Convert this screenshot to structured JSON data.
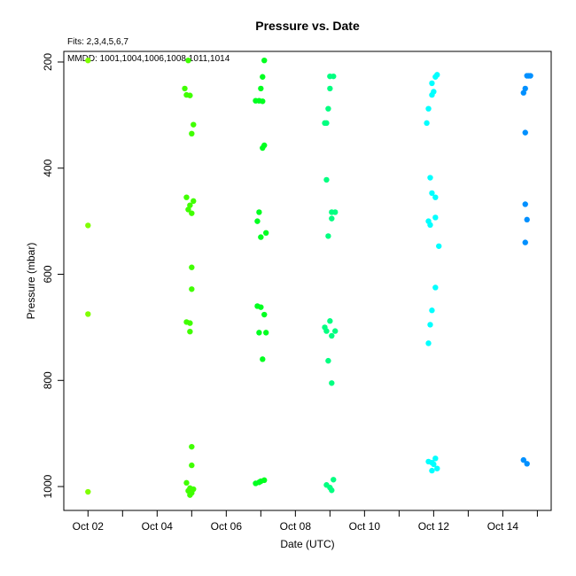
{
  "chart_data": {
    "type": "scatter",
    "title": "Pressure  vs. Date",
    "xlabel": "Date (UTC)",
    "ylabel": "Pressure (mbar)",
    "fits_note": "Fits: 2,3,4,5,6,7",
    "mmdd_note": "MMDD: 1001,1004,1006,1008,1011,1014",
    "xlim": [
      1.3,
      15.4
    ],
    "ylim": [
      1045,
      180
    ],
    "y_reversed": true,
    "grid": false,
    "x_ticks": [
      {
        "value": 2,
        "label": "Oct 02"
      },
      {
        "value": 3,
        "label": ""
      },
      {
        "value": 4,
        "label": "Oct 04"
      },
      {
        "value": 5,
        "label": ""
      },
      {
        "value": 6,
        "label": "Oct 06"
      },
      {
        "value": 7,
        "label": ""
      },
      {
        "value": 8,
        "label": "Oct 08"
      },
      {
        "value": 9,
        "label": ""
      },
      {
        "value": 10,
        "label": "Oct 10"
      },
      {
        "value": 11,
        "label": ""
      },
      {
        "value": 12,
        "label": "Oct 12"
      },
      {
        "value": 13,
        "label": ""
      },
      {
        "value": 14,
        "label": "Oct 14"
      },
      {
        "value": 15,
        "label": ""
      }
    ],
    "y_ticks": [
      {
        "value": 200,
        "label": "200"
      },
      {
        "value": 400,
        "label": "400"
      },
      {
        "value": 600,
        "label": "600"
      },
      {
        "value": 800,
        "label": "800"
      },
      {
        "value": 1000,
        "label": "1000"
      }
    ],
    "series": [
      {
        "color": "#80ff00",
        "points": [
          [
            2.0,
            197
          ],
          [
            2.0,
            508
          ],
          [
            2.0,
            675
          ],
          [
            2.0,
            1010
          ]
        ]
      },
      {
        "color": "#40ff00",
        "points": [
          [
            4.9,
            197
          ],
          [
            4.8,
            250
          ],
          [
            4.85,
            262
          ],
          [
            4.95,
            263
          ],
          [
            5.05,
            318
          ],
          [
            5.0,
            335
          ],
          [
            4.85,
            455
          ],
          [
            5.05,
            462
          ],
          [
            4.95,
            470
          ],
          [
            4.9,
            478
          ],
          [
            5.0,
            485
          ],
          [
            5.0,
            587
          ],
          [
            5.0,
            628
          ],
          [
            4.85,
            690
          ],
          [
            4.95,
            692
          ],
          [
            4.95,
            708
          ],
          [
            5.0,
            925
          ],
          [
            5.0,
            960
          ],
          [
            4.85,
            993
          ],
          [
            4.95,
            1003
          ],
          [
            5.05,
            1005
          ],
          [
            4.9,
            1008
          ],
          [
            5.0,
            1012
          ],
          [
            4.95,
            1016
          ]
        ]
      },
      {
        "color": "#00ff20",
        "points": [
          [
            7.1,
            197
          ],
          [
            7.05,
            228
          ],
          [
            7.0,
            250
          ],
          [
            6.85,
            273
          ],
          [
            6.95,
            273
          ],
          [
            7.05,
            274
          ],
          [
            7.1,
            357
          ],
          [
            7.05,
            362
          ],
          [
            6.95,
            483
          ],
          [
            6.9,
            500
          ],
          [
            7.15,
            522
          ],
          [
            7.0,
            530
          ],
          [
            6.9,
            660
          ],
          [
            7.0,
            662
          ],
          [
            7.1,
            676
          ],
          [
            6.95,
            710
          ],
          [
            7.15,
            710
          ],
          [
            7.05,
            760
          ],
          [
            6.85,
            994
          ],
          [
            6.95,
            992
          ],
          [
            7.0,
            990
          ],
          [
            7.1,
            988
          ]
        ]
      },
      {
        "color": "#00ff80",
        "points": [
          [
            9.0,
            227
          ],
          [
            9.1,
            227
          ],
          [
            9.0,
            250
          ],
          [
            8.95,
            288
          ],
          [
            8.85,
            315
          ],
          [
            8.9,
            315
          ],
          [
            8.9,
            422
          ],
          [
            9.05,
            483
          ],
          [
            9.15,
            483
          ],
          [
            9.05,
            495
          ],
          [
            8.95,
            528
          ],
          [
            9.0,
            688
          ],
          [
            8.85,
            700
          ],
          [
            8.9,
            707
          ],
          [
            9.15,
            707
          ],
          [
            9.05,
            716
          ],
          [
            8.95,
            763
          ],
          [
            9.05,
            805
          ],
          [
            9.1,
            987
          ],
          [
            8.9,
            997
          ],
          [
            9.0,
            1002
          ],
          [
            9.05,
            1007
          ]
        ]
      },
      {
        "color": "#00ffff",
        "points": [
          [
            12.1,
            224
          ],
          [
            12.05,
            228
          ],
          [
            11.95,
            240
          ],
          [
            12.0,
            256
          ],
          [
            11.95,
            262
          ],
          [
            11.85,
            288
          ],
          [
            11.8,
            315
          ],
          [
            11.9,
            418
          ],
          [
            11.95,
            447
          ],
          [
            12.05,
            455
          ],
          [
            12.05,
            493
          ],
          [
            11.85,
            500
          ],
          [
            11.9,
            507
          ],
          [
            12.15,
            547
          ],
          [
            12.05,
            625
          ],
          [
            11.95,
            668
          ],
          [
            11.9,
            695
          ],
          [
            11.85,
            730
          ],
          [
            12.05,
            947
          ],
          [
            11.85,
            953
          ],
          [
            11.95,
            955
          ],
          [
            12.0,
            958
          ],
          [
            11.95,
            970
          ],
          [
            12.1,
            966
          ]
        ]
      },
      {
        "color": "#0090ff",
        "points": [
          [
            14.7,
            226
          ],
          [
            14.75,
            226
          ],
          [
            14.8,
            226
          ],
          [
            14.65,
            250
          ],
          [
            14.6,
            258
          ],
          [
            14.65,
            333
          ],
          [
            14.65,
            468
          ],
          [
            14.7,
            497
          ],
          [
            14.65,
            540
          ],
          [
            14.6,
            950
          ],
          [
            14.7,
            957
          ]
        ]
      }
    ]
  }
}
